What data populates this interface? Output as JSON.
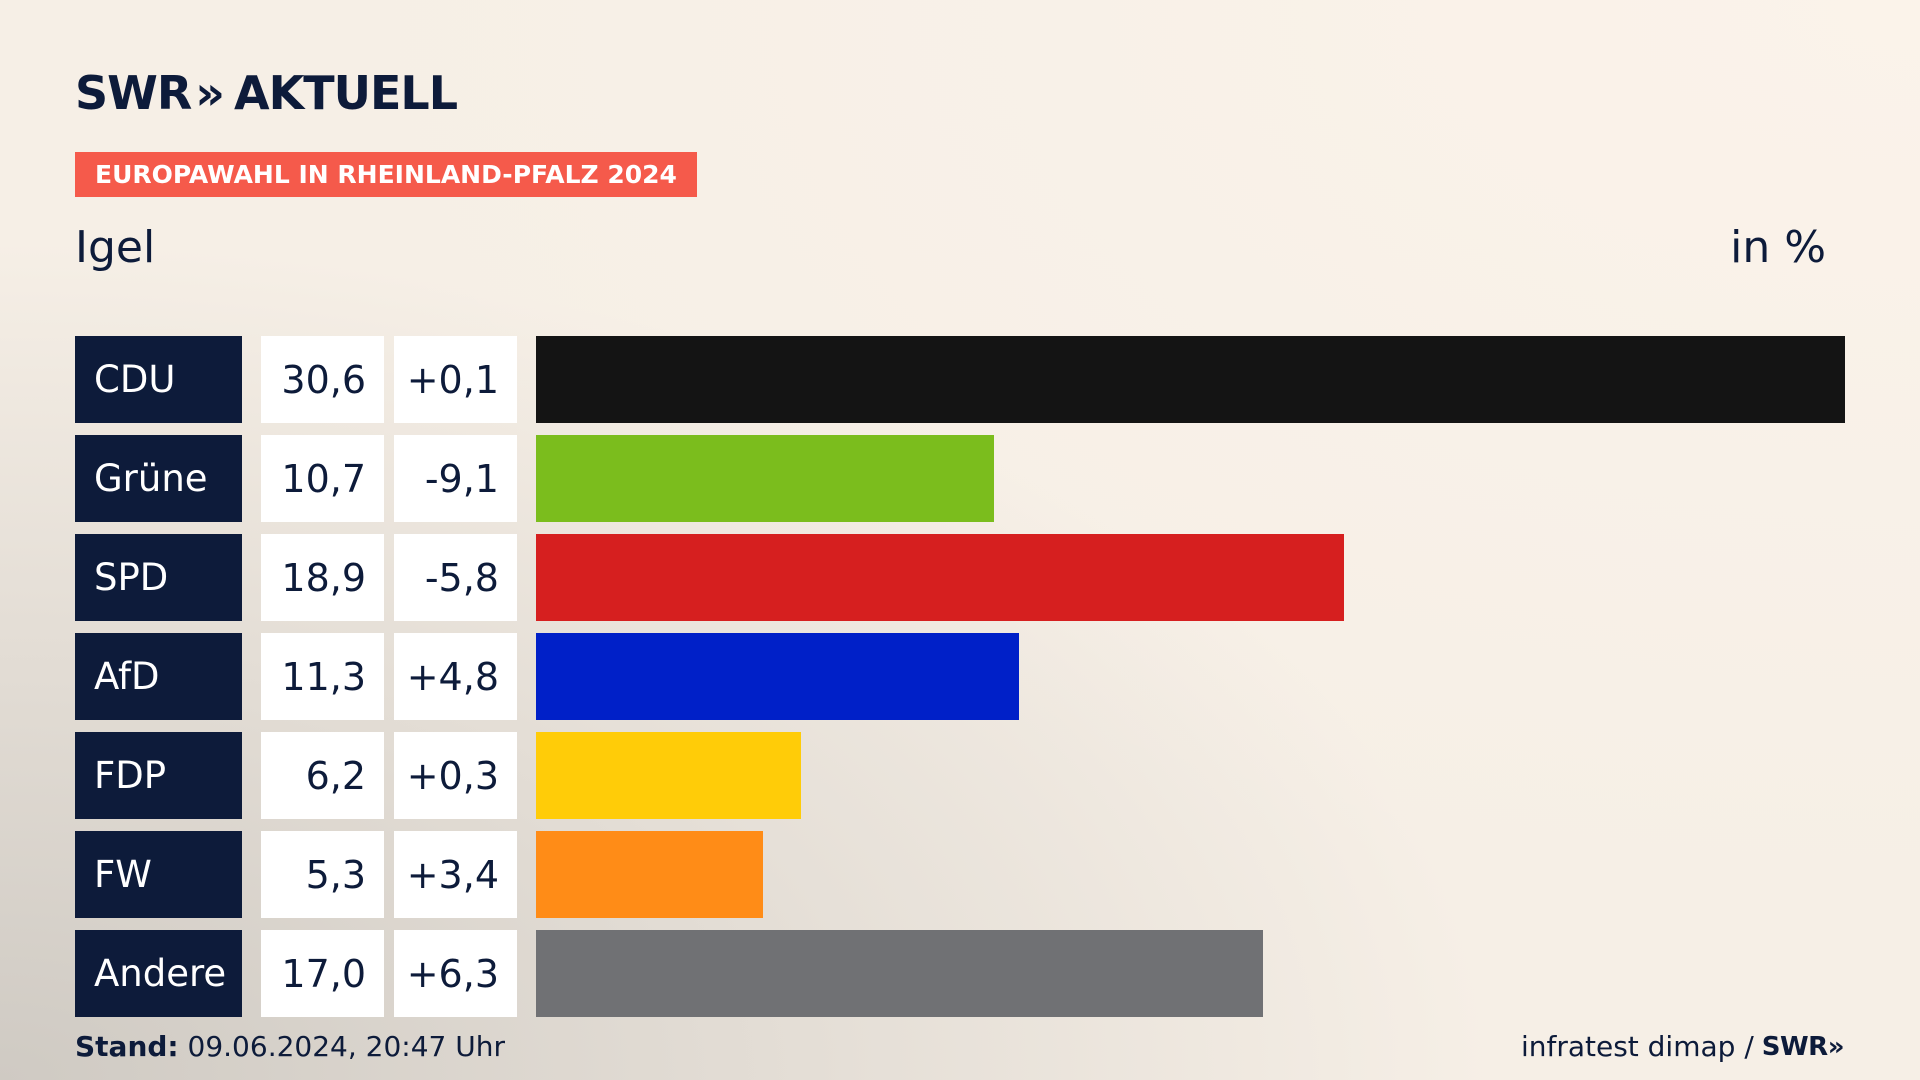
{
  "header": {
    "logo_text": "SWR",
    "logo_chevrons": "»",
    "logo_subtitle": "AKTUELL",
    "badge": "EUROPAWAHL IN RHEINLAND-PFALZ 2024",
    "region": "Igel",
    "unit": "in %"
  },
  "chart_data": {
    "type": "bar",
    "orientation": "horizontal",
    "categories": [
      "CDU",
      "Grüne",
      "SPD",
      "AfD",
      "FDP",
      "FW",
      "Andere"
    ],
    "values": [
      30.6,
      10.7,
      18.9,
      11.3,
      6.2,
      5.3,
      17.0
    ],
    "value_labels": [
      "30,6",
      "10,7",
      "18,9",
      "11,3",
      "6,2",
      "5,3",
      "17,0"
    ],
    "changes": [
      "+0,1",
      "-9,1",
      "-5,8",
      "+4,8",
      "+0,3",
      "+3,4",
      "+6,3"
    ],
    "colors": [
      "#141414",
      "#7bbd1d",
      "#d61f1f",
      "#0020c8",
      "#ffcc08",
      "#ff8c17",
      "#707174"
    ],
    "xlim": [
      0,
      30.6
    ]
  },
  "footer": {
    "stand_label": "Stand:",
    "stand_value": "09.06.2024, 20:47 Uhr",
    "source": "infratest dimap /",
    "source_logo": "SWR»"
  }
}
